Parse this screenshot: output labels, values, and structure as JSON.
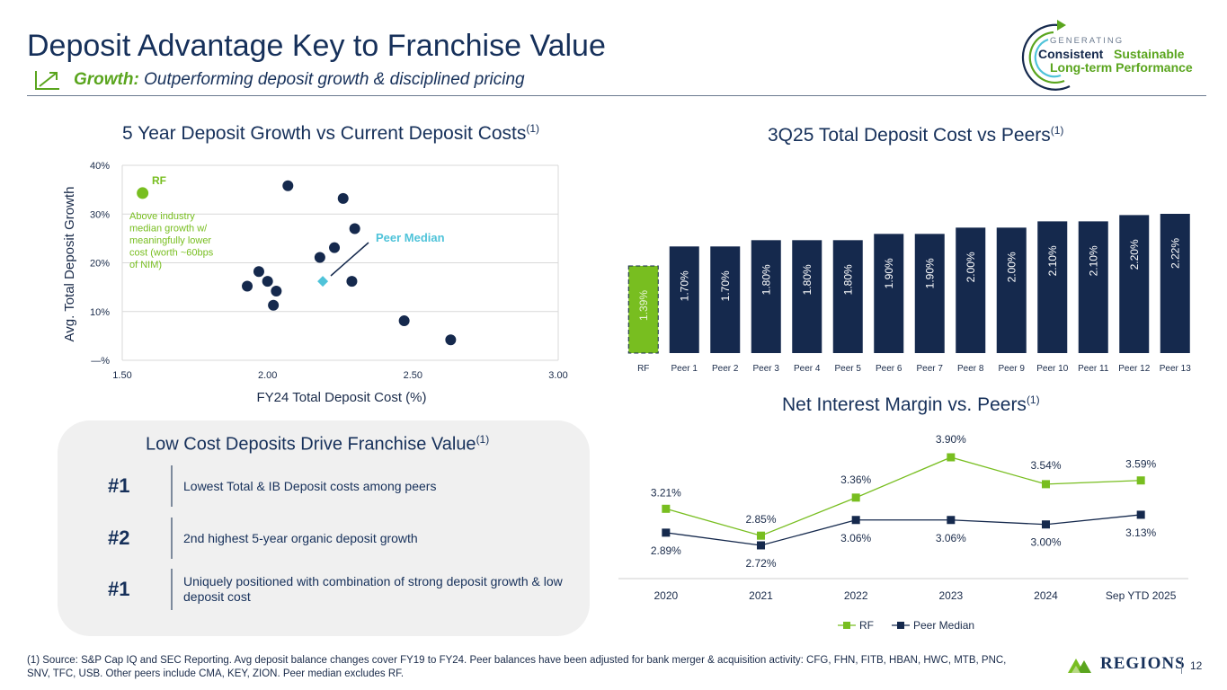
{
  "header": {
    "title": "Deposit Advantage Key to Franchise Value",
    "subtitle_bold": "Growth:",
    "subtitle_rest": " Outperforming deposit growth & disciplined pricing",
    "logo": {
      "line1": "GENERATING",
      "line2a": "Consistent",
      "line2b": "Sustainable",
      "line3": "Long-term Performance"
    }
  },
  "colors": {
    "navy": "#15294d",
    "green": "#78be20",
    "teal": "#4fc3d9",
    "lightGreen": "#b7d984"
  },
  "scatter": {
    "title": "5 Year Deposit Growth vs Current Deposit Costs",
    "title_sup": "(1)",
    "rf_label": "RF",
    "rf_note": [
      "Above industry",
      "median growth w/",
      "meaningfully lower",
      "cost (worth ~60bps",
      "of NIM)"
    ],
    "median_label": "Peer Median"
  },
  "bar_panel": {
    "title": "3Q25 Total Deposit Cost vs Peers",
    "title_sup": "(1)"
  },
  "line_panel": {
    "title": "Net Interest Margin vs. Peers",
    "title_sup": "(1)"
  },
  "low_cost": {
    "title": "Low Cost Deposits Drive Franchise Value",
    "title_sup": "(1)",
    "items": [
      {
        "rank": "#1",
        "text": "Lowest Total & IB Deposit costs among peers"
      },
      {
        "rank": "#2",
        "text": "2nd highest 5-year organic deposit growth"
      },
      {
        "rank": "#1",
        "text": "Uniquely positioned with combination of strong deposit growth & low deposit cost"
      }
    ]
  },
  "footer": {
    "footnote": "(1) Source: S&P Cap IQ and SEC Reporting. Avg deposit balance changes cover FY19 to FY24. Peer balances have been adjusted for bank merger & acquisition activity: CFG, FHN, FITB, HBAN, HWC, MTB, PNC, SNV, TFC, USB.  Other peers include CMA, KEY, ZION. Peer median excludes RF.",
    "brand": "Regions",
    "page": "12"
  },
  "chart_data": [
    {
      "type": "scatter",
      "title": "5 Year Deposit Growth vs Current Deposit Costs",
      "xlabel": "FY24 Total Deposit Cost (%)",
      "ylabel": "Avg. Total Deposit Growth",
      "xlim": [
        1.5,
        3.0
      ],
      "ylim": [
        0,
        40
      ],
      "x_ticks": [
        1.5,
        2.0,
        2.5,
        3.0
      ],
      "x_tick_labels": [
        "1.50",
        "2.00",
        "2.50",
        "3.00"
      ],
      "y_ticks": [
        0,
        10,
        20,
        30,
        40
      ],
      "y_tick_labels": [
        "—%",
        "10%",
        "20%",
        "30%",
        "40%"
      ],
      "grid": true,
      "series": [
        {
          "name": "RF",
          "points": [
            [
              1.57,
              34.3
            ]
          ]
        },
        {
          "name": "Peer Median",
          "points": [
            [
              2.19,
              16.2
            ]
          ]
        },
        {
          "points": [
            [
              2.07,
              35.8
            ],
            [
              2.26,
              33.2
            ],
            [
              2.3,
              27.0
            ],
            [
              2.23,
              23.1
            ],
            [
              2.18,
              21.1
            ],
            [
              1.97,
              18.2
            ],
            [
              2.0,
              16.2
            ],
            [
              2.29,
              16.2
            ],
            [
              1.93,
              15.2
            ],
            [
              2.03,
              14.2
            ],
            [
              2.02,
              11.3
            ],
            [
              2.47,
              8.1
            ],
            [
              2.63,
              4.2
            ]
          ]
        }
      ]
    },
    {
      "type": "bar",
      "title": "3Q25 Total Deposit Cost vs Peers",
      "categories": [
        "RF",
        "Peer 1",
        "Peer 2",
        "Peer 3",
        "Peer 4",
        "Peer 5",
        "Peer 6",
        "Peer 7",
        "Peer 8",
        "Peer 9",
        "Peer 10",
        "Peer 11",
        "Peer 12",
        "Peer 13"
      ],
      "values": [
        1.39,
        1.7,
        1.7,
        1.8,
        1.8,
        1.8,
        1.9,
        1.9,
        2.0,
        2.0,
        2.1,
        2.1,
        2.2,
        2.22
      ],
      "labels": [
        "1.39%",
        "1.70%",
        "1.70%",
        "1.80%",
        "1.80%",
        "1.80%",
        "1.90%",
        "1.90%",
        "2.00%",
        "2.00%",
        "2.10%",
        "2.10%",
        "2.20%",
        "2.22%"
      ],
      "highlight_index": 0
    },
    {
      "type": "line",
      "title": "Net Interest Margin vs. Peers",
      "categories": [
        "2020",
        "2021",
        "2022",
        "2023",
        "2024",
        "Sep YTD 2025"
      ],
      "series": [
        {
          "name": "RF",
          "values": [
            3.21,
            2.85,
            3.36,
            3.9,
            3.54,
            3.59
          ],
          "labels": [
            "3.21%",
            "2.85%",
            "3.36%",
            "3.90%",
            "3.54%",
            "3.59%"
          ]
        },
        {
          "name": "Peer Median",
          "values": [
            2.89,
            2.72,
            3.06,
            3.06,
            3.0,
            3.13
          ],
          "labels": [
            "2.89%",
            "2.72%",
            "3.06%",
            "3.06%",
            "3.00%",
            "3.13%"
          ]
        }
      ],
      "legend": "bottom"
    }
  ]
}
